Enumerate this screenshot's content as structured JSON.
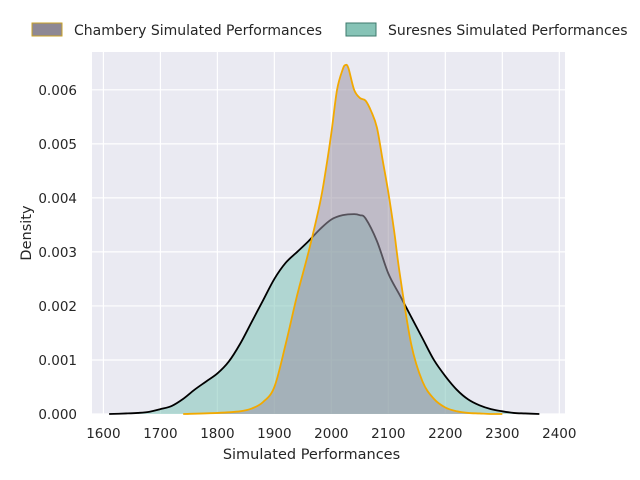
{
  "chart_data": {
    "type": "area",
    "title": "",
    "xlabel": "Simulated Performances",
    "ylabel": "Density",
    "xlim": [
      1580,
      2410
    ],
    "ylim": [
      0,
      0.0067
    ],
    "xticks": [
      1600,
      1700,
      1800,
      1900,
      2000,
      2100,
      2200,
      2300,
      2400
    ],
    "yticks": [
      0.0,
      0.001,
      0.002,
      0.003,
      0.004,
      0.005,
      0.006
    ],
    "ytick_labels": [
      "0.000",
      "0.001",
      "0.002",
      "0.003",
      "0.004",
      "0.005",
      "0.006"
    ],
    "grid": true,
    "background": "#eaeaf2",
    "legend": {
      "placement": "top",
      "columns": 2
    },
    "series": [
      {
        "name": "Suresnes Simulated Performances",
        "fill_color": "#7fc4b8",
        "fill_opacity": 0.55,
        "line_color": "#000000",
        "legend_swatch_fill": "#86c3b6",
        "legend_swatch_edge": "#3d7a6c",
        "x": [
          1610,
          1640,
          1660,
          1680,
          1700,
          1720,
          1740,
          1760,
          1780,
          1800,
          1820,
          1840,
          1860,
          1880,
          1900,
          1920,
          1940,
          1960,
          1980,
          2000,
          2020,
          2040,
          2050,
          2060,
          2080,
          2100,
          2120,
          2140,
          2160,
          2180,
          2200,
          2220,
          2240,
          2260,
          2280,
          2300,
          2320,
          2340,
          2365
        ],
        "y": [
          0.0,
          1e-05,
          2e-05,
          4e-05,
          9e-05,
          0.00015,
          0.00028,
          0.00045,
          0.0006,
          0.00075,
          0.00097,
          0.0013,
          0.0017,
          0.0021,
          0.0025,
          0.0028,
          0.003,
          0.0032,
          0.00342,
          0.0036,
          0.00368,
          0.0037,
          0.00368,
          0.00362,
          0.0032,
          0.0026,
          0.0022,
          0.0018,
          0.0014,
          0.001,
          0.0007,
          0.00045,
          0.00027,
          0.00016,
          9e-05,
          5e-05,
          2e-05,
          1e-05,
          0.0
        ]
      },
      {
        "name": "Chambery Simulated Performances",
        "fill_color": "#9a93a4",
        "fill_opacity": 0.55,
        "line_color": "#f2a900",
        "legend_swatch_fill": "#8e8894",
        "legend_swatch_edge": "#c9a227",
        "x": [
          1740,
          1800,
          1840,
          1860,
          1880,
          1900,
          1920,
          1940,
          1960,
          1980,
          1990,
          2000,
          2010,
          2020,
          2025,
          2030,
          2040,
          2050,
          2060,
          2070,
          2080,
          2090,
          2100,
          2110,
          2120,
          2140,
          2160,
          2180,
          2200,
          2220,
          2240,
          2260,
          2280,
          2300
        ],
        "y": [
          0.0,
          2e-05,
          5e-05,
          0.0001,
          0.00022,
          0.0005,
          0.0013,
          0.0022,
          0.003,
          0.0039,
          0.0045,
          0.0052,
          0.006,
          0.00638,
          0.00646,
          0.0064,
          0.006,
          0.00585,
          0.0058,
          0.0056,
          0.0053,
          0.0047,
          0.0041,
          0.0034,
          0.0026,
          0.0013,
          0.0006,
          0.00028,
          0.00012,
          5e-05,
          2e-05,
          1e-05,
          0.0,
          0.0
        ]
      }
    ]
  }
}
